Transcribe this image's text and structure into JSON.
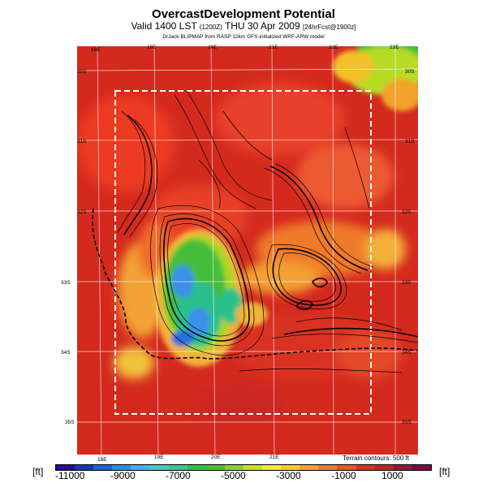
{
  "header": {
    "title": "OvercastDevelopment Potential",
    "valid_main": "Valid 1400 LST",
    "valid_time_small": "(1200Z)",
    "valid_date": "THU 30 Apr 2009",
    "forecast_small": "[24hrFcst@1900z]",
    "credit": "DrJack BLIPMAP from RASP 12km GFS-initialized WRF-ARW model"
  },
  "map": {
    "top_ticks": [
      "18E",
      "19E",
      "20E",
      "21E",
      "22E",
      "23E"
    ],
    "bottom_ticks": [
      "18E",
      "19E",
      "20E",
      "21E"
    ],
    "left_ticks": [
      "30S",
      "31S",
      "32S",
      "33S",
      "34S",
      "35S"
    ],
    "right_ticks": [
      "30S",
      "31S",
      "32S",
      "33S",
      "34S",
      "35S"
    ],
    "terrain_note": "Terrain contours: 500 ft",
    "colors": {
      "background": "#d42a1e",
      "high": "#f04a2a",
      "mid": "#f7b33a",
      "low_green": "#30b040",
      "lowest_blue": "#3a7ee8"
    }
  },
  "legend": {
    "unit_left": "[ft]",
    "unit_right": "[ft]",
    "labels": [
      "-11000",
      "-9000",
      "-7000",
      "-5000",
      "-3000",
      "-1000",
      "1000"
    ],
    "colors": [
      "#2a0a9a",
      "#1a32c8",
      "#1c5ee6",
      "#2a8cf2",
      "#34b8f0",
      "#35d0c8",
      "#2fcf8e",
      "#30c050",
      "#4ebc2a",
      "#8ed41e",
      "#c8e21a",
      "#f1ee2a",
      "#f5cd23",
      "#f6a524",
      "#f47c24",
      "#ef522a",
      "#e02a22",
      "#c81e26",
      "#a01238",
      "#780a4a"
    ]
  }
}
